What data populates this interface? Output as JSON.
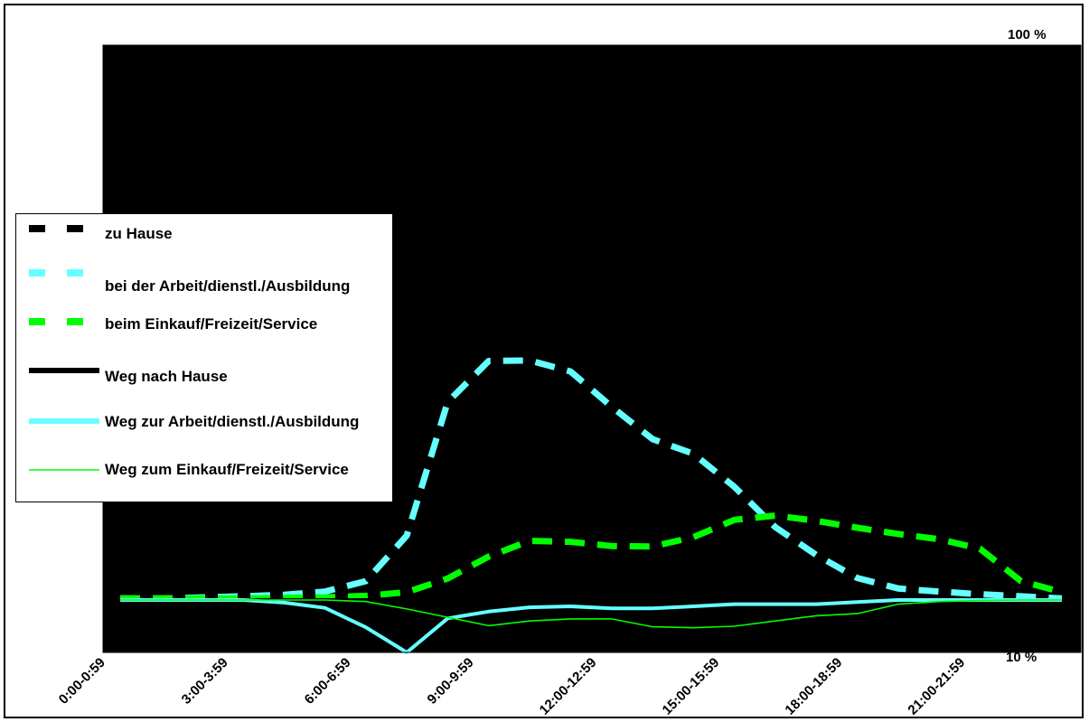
{
  "chart_data": {
    "type": "line",
    "title": "",
    "xlabel": "",
    "ylabel": "",
    "y_top_label": "100 %",
    "y_bottom_label": "10 %",
    "ylim": [
      -10,
      100
    ],
    "x_tick_labels": [
      "0:00-0:59",
      "3:00-3:59",
      "6:00-6:59",
      "9:00-9:59",
      "12:00-12:59",
      "15:00-15:59",
      "18:00-18:59",
      "21:00-21:59"
    ],
    "x_count": 24,
    "background": "#000000",
    "legend_position": "left",
    "series": [
      {
        "name": "zu Hause",
        "color": "#000000",
        "style": "dashed",
        "values": [
          100,
          100,
          100,
          100,
          100,
          100,
          100,
          100,
          100,
          100,
          100,
          100,
          100,
          100,
          100,
          100,
          100,
          100,
          100,
          100,
          100,
          100,
          100,
          100
        ]
      },
      {
        "name": "bei der Arbeit/dienstl./Ausbildung",
        "color": "#66ffff",
        "style": "dashed",
        "values": [
          0.3,
          0.3,
          0.5,
          0.7,
          1,
          1.6,
          3.6,
          12.3,
          37.8,
          45.6,
          45.7,
          43.6,
          36.9,
          30.7,
          27.9,
          21.6,
          13.9,
          8.6,
          4.2,
          2.2,
          1.6,
          1.1,
          0.7,
          0.3
        ]
      },
      {
        "name": "beim Einkauf/Freizeit/Service",
        "color": "#00ff00",
        "style": "dashed",
        "values": [
          0.3,
          0.3,
          0.3,
          0.3,
          0.4,
          0.5,
          0.8,
          1.5,
          4.1,
          8.3,
          11.3,
          11.1,
          10.3,
          10.2,
          12.0,
          15.3,
          16.1,
          15.1,
          13.8,
          12.6,
          11.6,
          9.8,
          3.6,
          1.5
        ]
      },
      {
        "name": "Weg nach Hause",
        "color": "#000000",
        "style": "solid-thick",
        "values": [
          0,
          0,
          0,
          0,
          0,
          0,
          0,
          0,
          0,
          0,
          0,
          0,
          0,
          0,
          0,
          0,
          0,
          0,
          0,
          0,
          0,
          0,
          0,
          0
        ]
      },
      {
        "name": "Weg zur Arbeit/dienstl./Ausbildung",
        "color": "#66ffff",
        "style": "solid-thick",
        "values": [
          0,
          0,
          0,
          0,
          -0.5,
          -1.5,
          -5.2,
          -10,
          -3.5,
          -2.2,
          -1.4,
          -1.2,
          -1.6,
          -1.6,
          -1.2,
          -0.8,
          -0.8,
          -0.8,
          -0.4,
          0,
          0,
          0,
          0,
          0
        ]
      },
      {
        "name": "Weg zum Einkauf/Freizeit/Service",
        "color": "#00ff00",
        "style": "solid-thin",
        "values": [
          0,
          0,
          0,
          0,
          0,
          0,
          -0.3,
          -1.7,
          -3.3,
          -4.9,
          -4.0,
          -3.6,
          -3.6,
          -5.1,
          -5.3,
          -5.0,
          -4.0,
          -3.0,
          -2.6,
          -0.8,
          -0.3,
          -0.1,
          0,
          0
        ]
      }
    ]
  }
}
